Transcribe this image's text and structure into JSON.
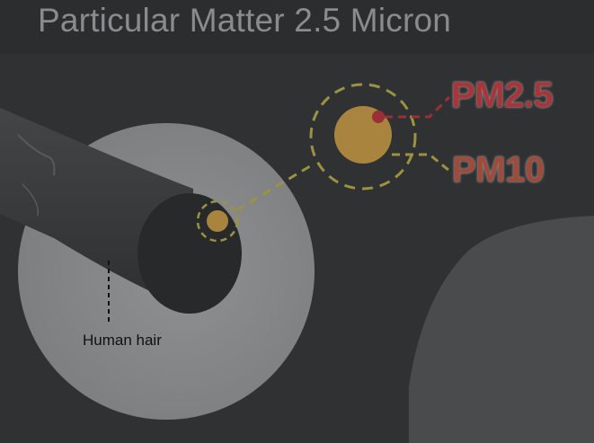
{
  "title": "Particular Matter 2.5 Micron",
  "labels": {
    "pm25": "PM2.5",
    "pm10": "PM10",
    "human_hair": "Human hair"
  },
  "colors": {
    "background": "#2f3133",
    "hair_cross_section": "#8c8d8f",
    "hair_strand": "#3a3b3d",
    "pm10_particle": "#a8843f",
    "pm25_particle": "#9a2f36",
    "dashed_lines": "#9b9342",
    "connector_pm25": "#9a2f36"
  }
}
